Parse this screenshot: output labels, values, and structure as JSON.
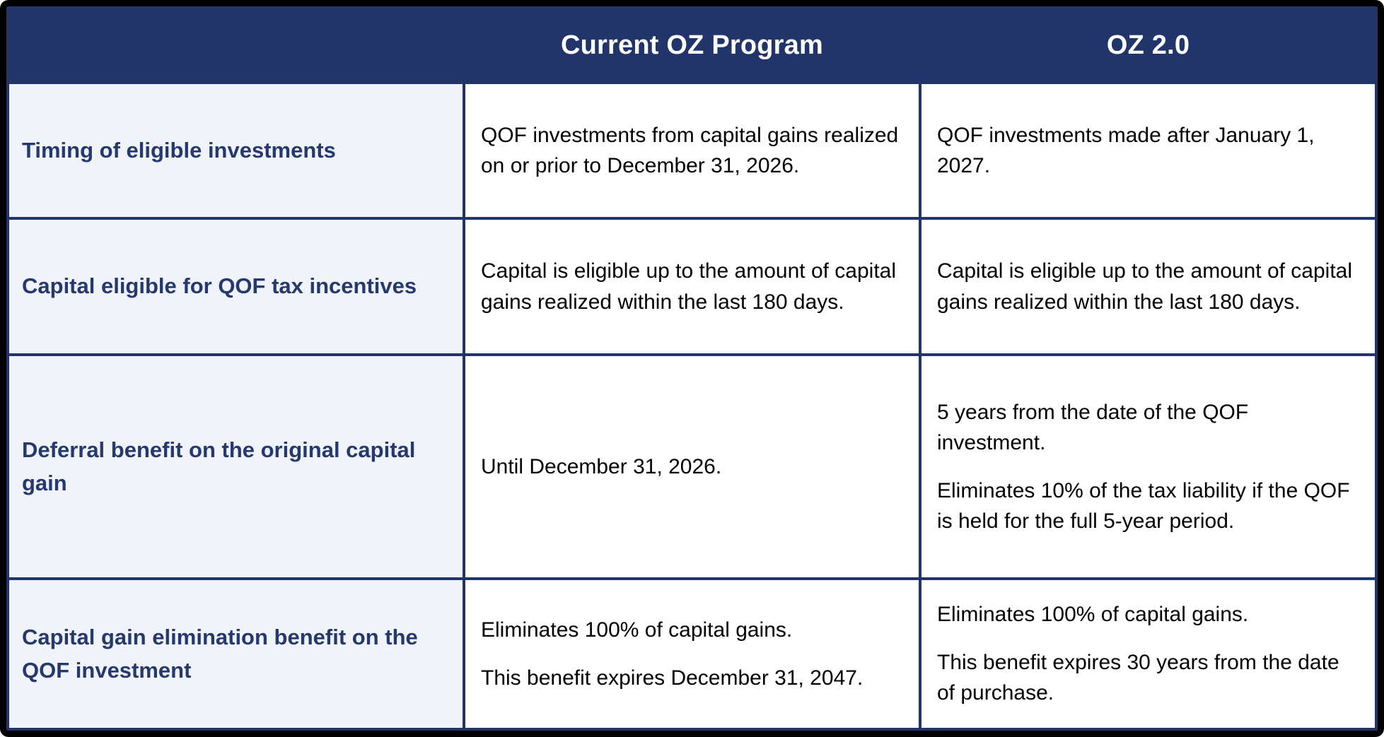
{
  "table": {
    "columns": [
      "",
      "Current OZ Program",
      "OZ 2.0"
    ],
    "rows": [
      {
        "header": "Timing of eligible investments",
        "current": [
          "QOF investments from capital gains realized on or prior to December 31, 2026."
        ],
        "oz2": [
          "QOF investments made after January 1, 2027."
        ]
      },
      {
        "header": "Capital eligible for QOF tax incentives",
        "current": [
          "Capital is eligible up to the amount of capital gains realized within the last 180 days."
        ],
        "oz2": [
          "Capital is eligible up to the amount of capital gains realized within the last 180 days."
        ]
      },
      {
        "header": "Deferral benefit on the original capital gain",
        "current": [
          "Until December 31, 2026."
        ],
        "oz2": [
          "5 years from the date of the QOF investment.",
          "Eliminates 10% of the tax liability if the QOF is held for the full 5-year period."
        ]
      },
      {
        "header": "Capital gain elimination benefit on the QOF investment",
        "current": [
          "Eliminates 100% of capital gains.",
          "This benefit expires December 31, 2047."
        ],
        "oz2": [
          "Eliminates 100% of capital gains.",
          "This benefit expires 30 years from the date of purchase."
        ]
      }
    ]
  },
  "colors": {
    "header_bg": "#22356B",
    "header_text": "#FFFFFF",
    "row_header_bg": "#F0F3FA",
    "row_header_text": "#25396E",
    "grid_border": "#22356B",
    "outer_frame": "#000000",
    "body_text": "#000000",
    "cell_bg": "#FFFFFF"
  }
}
